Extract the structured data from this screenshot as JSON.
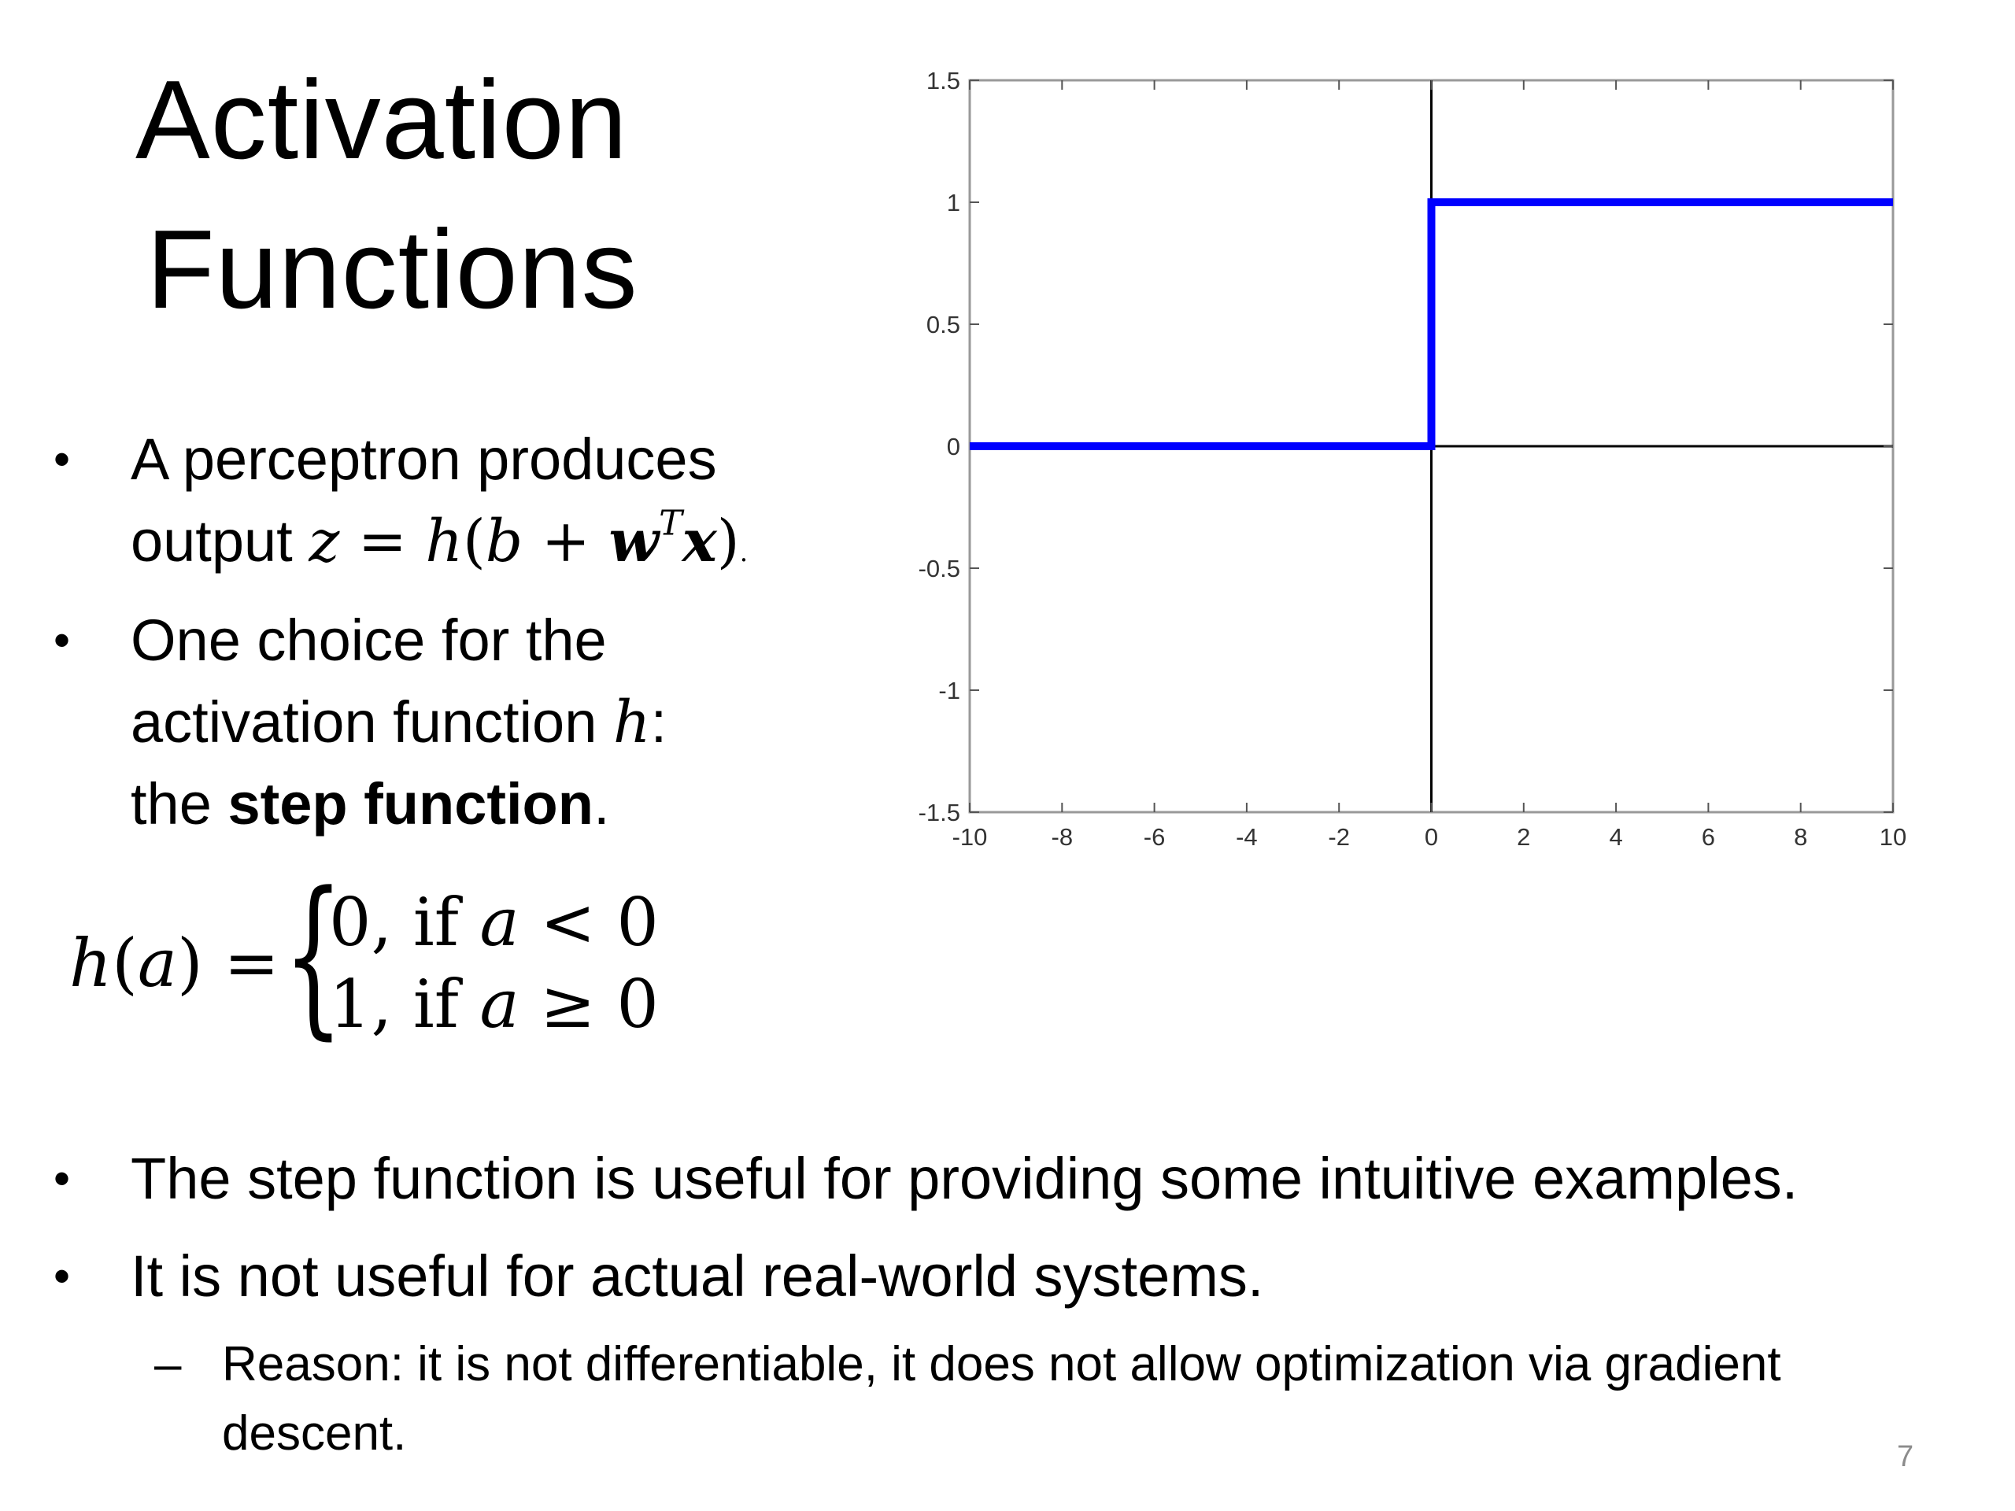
{
  "title": {
    "line1": "Activation",
    "line2": "Functions"
  },
  "bullets": [
    {
      "dot": "•",
      "line1": " A perceptron produces",
      "line2_text": "output ",
      "line2_math": {
        "z": "z",
        "eq": " = ",
        "h": "h",
        "open": "(",
        "b": "b",
        "plus": " + ",
        "w": "w",
        "T": "T",
        "x": "x",
        "close": ")",
        "period": "."
      }
    },
    {
      "dot": "•",
      "line1": "One choice for the",
      "line2_text": "activation function ",
      "line2_math": "h",
      "line2_tail": ":",
      "line3_text": "the ",
      "line3_bold": "step function",
      "line3_tail": "."
    }
  ],
  "formula": {
    "lhs_h": "h",
    "lhs_open": "(",
    "lhs_a": "a",
    "lhs_close": ")",
    "lhs_eq": " = ",
    "brace": "{",
    "case1_val": "0, if ",
    "case1_var": "a",
    "case1_rel": " < 0",
    "case2_val": "1, if ",
    "case2_var": "a",
    "case2_rel": " ≥ 0"
  },
  "bottom_bullets": [
    {
      "dot": "•",
      "text": "The step function is useful for providing some intuitive examples."
    },
    {
      "dot": "•",
      "text": "It is not useful for actual real-world systems."
    }
  ],
  "sub_bullet": {
    "dash": "–",
    "line1": "Reason: it is not differentiable, it does not allow optimization via gradient",
    "line2": "descent."
  },
  "page_number": "7",
  "chart_data": {
    "type": "line",
    "title": "",
    "xlabel": "",
    "ylabel": "",
    "xlim": [
      -10,
      10
    ],
    "ylim": [
      -1.5,
      1.5
    ],
    "x_ticks": [
      -10,
      -8,
      -6,
      -4,
      -2,
      0,
      2,
      4,
      6,
      8,
      10
    ],
    "y_ticks": [
      1.5,
      1,
      0.5,
      0,
      -0.5,
      -1,
      -1.5
    ],
    "x_tick_labels": [
      "-10",
      "-8",
      "-6",
      "-4",
      "-2",
      "0",
      "2",
      "4",
      "6",
      "8",
      "10"
    ],
    "y_tick_labels": [
      "1.5",
      "1",
      "0.5",
      "0",
      "-0.5",
      "-1",
      "-1.5"
    ],
    "grid": false,
    "axes_lines": {
      "x0": 0,
      "y0": 0
    },
    "series": [
      {
        "x": [
          -10,
          0,
          0,
          10
        ],
        "y": [
          0,
          0,
          1,
          1
        ],
        "color": "#0000ff"
      }
    ],
    "axis_line_color": "#000000",
    "frame_color": "#999999"
  }
}
